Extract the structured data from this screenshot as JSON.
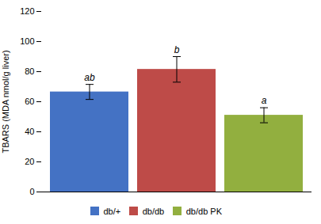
{
  "chart_data": {
    "type": "bar",
    "ylabel": "TBARS (MDA nmol/g liver)",
    "categories": [
      "db/+",
      "db/db",
      "db/db PK"
    ],
    "values": [
      66.5,
      81.5,
      51.0
    ],
    "errors": [
      5.0,
      8.5,
      5.0
    ],
    "colors": [
      "#4472C4",
      "#BE4B48",
      "#92AF3F"
    ],
    "annotations": [
      "ab",
      "b",
      "a"
    ],
    "ylim": [
      0,
      120
    ],
    "yticks": [
      0,
      20,
      40,
      60,
      80,
      100,
      120
    ],
    "tick_labels": "y",
    "legend": "bottom"
  }
}
